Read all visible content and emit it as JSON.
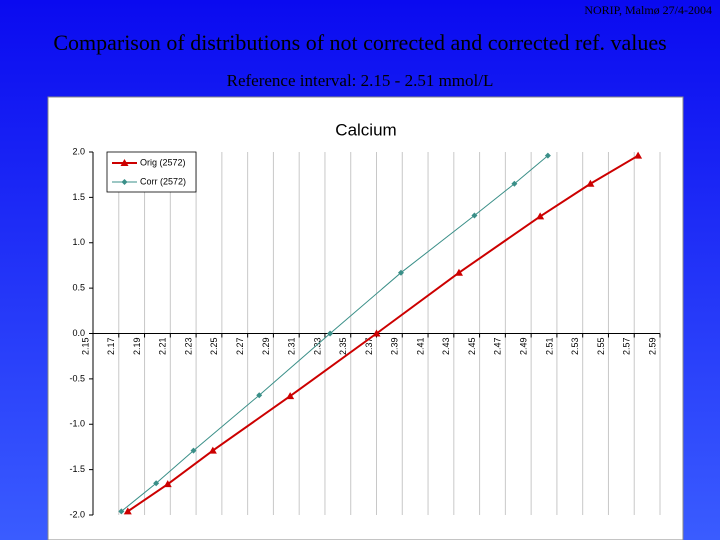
{
  "header": {
    "text": "NORIP, Malmø 27/4-2004"
  },
  "title": "Comparison of distributions of not corrected and corrected ref. values",
  "subtitle": "Reference interval: 2.15 - 2.51 mmol/L",
  "chart_data": {
    "type": "line",
    "title": "Calcium",
    "xlim": [
      2.15,
      2.59
    ],
    "xticks": [
      2.15,
      2.17,
      2.19,
      2.21,
      2.23,
      2.25,
      2.27,
      2.29,
      2.31,
      2.33,
      2.35,
      2.37,
      2.39,
      2.41,
      2.43,
      2.45,
      2.47,
      2.49,
      2.51,
      2.53,
      2.55,
      2.57,
      2.59
    ],
    "ylim": [
      -2,
      2
    ],
    "yticks": [
      {
        "value": 2,
        "label": "2.0"
      },
      {
        "value": 1.5,
        "label": "1.5"
      },
      {
        "value": 1,
        "label": "1.0"
      },
      {
        "value": 0.5,
        "label": "0.5"
      },
      {
        "value": 0,
        "label": "0.0"
      },
      {
        "value": -0.5,
        "label": "-0.5"
      },
      {
        "value": -1,
        "label": "-1.0"
      },
      {
        "value": -1.5,
        "label": "-1.5"
      },
      {
        "value": -2,
        "label": "-2.0"
      }
    ],
    "grid": true,
    "legend": "top-left",
    "series": [
      {
        "name": "Orig (2572)",
        "color": "#cc0000",
        "marker": "triangle",
        "x": [
          2.177,
          2.208,
          2.243,
          2.303,
          2.37,
          2.434,
          2.497,
          2.536,
          2.573
        ],
        "values": [
          -1.96,
          -1.66,
          -1.29,
          -0.69,
          0,
          0.67,
          1.29,
          1.65,
          1.96
        ]
      },
      {
        "name": "Corr (2572)",
        "color": "#3a8f88",
        "marker": "diamond",
        "x": [
          2.172,
          2.199,
          2.228,
          2.279,
          2.334,
          2.389,
          2.446,
          2.477,
          2.503
        ],
        "values": [
          -1.96,
          -1.65,
          -1.29,
          -0.68,
          0,
          0.67,
          1.3,
          1.65,
          1.96
        ]
      }
    ]
  }
}
